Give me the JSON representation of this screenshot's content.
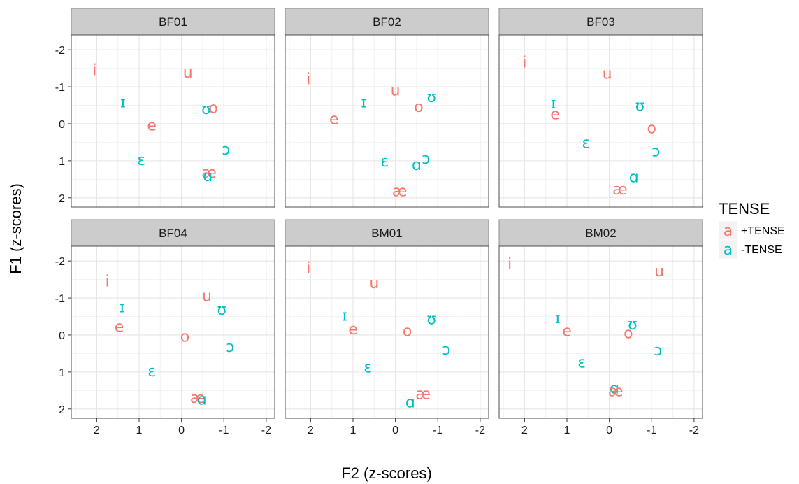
{
  "chart_data": {
    "type": "scatter",
    "xlabel": "F2 (z-scores)",
    "ylabel": "F1 (z-scores)",
    "xlim": [
      2.6,
      -2.2
    ],
    "ylim": [
      -2.4,
      2.25
    ],
    "x_ticks": [
      2,
      1,
      0,
      -1,
      -2
    ],
    "y_ticks": [
      -2,
      -1,
      0,
      1,
      2
    ],
    "grid": true,
    "legend": {
      "title": "TENSE",
      "placement": "right",
      "key_glyph": "a",
      "entries": [
        {
          "label": "+TENSE",
          "color": "#F8766D"
        },
        {
          "label": "-TENSE",
          "color": "#00BFC4"
        }
      ]
    },
    "panels": [
      {
        "title": "BF01",
        "points": [
          {
            "v": "i",
            "x": 2.05,
            "y": -1.45,
            "t": "+"
          },
          {
            "v": "u",
            "x": -0.15,
            "y": -1.38,
            "t": "+"
          },
          {
            "v": "ɪ",
            "x": 1.38,
            "y": -0.58,
            "t": "-"
          },
          {
            "v": "ʊ",
            "x": -0.58,
            "y": -0.4,
            "t": "-"
          },
          {
            "v": "o",
            "x": -0.75,
            "y": -0.42,
            "t": "+"
          },
          {
            "v": "e",
            "x": 0.7,
            "y": 0.05,
            "t": "+"
          },
          {
            "v": "ɔ",
            "x": -1.05,
            "y": 0.7,
            "t": "-"
          },
          {
            "v": "ɛ",
            "x": 0.95,
            "y": 0.98,
            "t": "-"
          },
          {
            "v": "æ",
            "x": -0.65,
            "y": 1.32,
            "t": "+"
          },
          {
            "v": "ɑ",
            "x": -0.62,
            "y": 1.42,
            "t": "-"
          }
        ]
      },
      {
        "title": "BF02",
        "points": [
          {
            "v": "i",
            "x": 2.05,
            "y": -1.2,
            "t": "+"
          },
          {
            "v": "u",
            "x": 0.0,
            "y": -0.9,
            "t": "+"
          },
          {
            "v": "ʊ",
            "x": -0.85,
            "y": -0.72,
            "t": "-"
          },
          {
            "v": "ɪ",
            "x": 0.75,
            "y": -0.58,
            "t": "-"
          },
          {
            "v": "o",
            "x": -0.55,
            "y": -0.45,
            "t": "+"
          },
          {
            "v": "e",
            "x": 1.45,
            "y": -0.12,
            "t": "+"
          },
          {
            "v": "ɔ",
            "x": -0.72,
            "y": 0.95,
            "t": "-"
          },
          {
            "v": "ɛ",
            "x": 0.25,
            "y": 1.02,
            "t": "-"
          },
          {
            "v": "ɑ",
            "x": -0.5,
            "y": 1.12,
            "t": "-"
          },
          {
            "v": "æ",
            "x": -0.1,
            "y": 1.82,
            "t": "+"
          }
        ]
      },
      {
        "title": "BF03",
        "points": [
          {
            "v": "i",
            "x": 2.0,
            "y": -1.65,
            "t": "+"
          },
          {
            "v": "u",
            "x": 0.05,
            "y": -1.35,
            "t": "+"
          },
          {
            "v": "ɪ",
            "x": 1.32,
            "y": -0.55,
            "t": "-"
          },
          {
            "v": "ʊ",
            "x": -0.72,
            "y": -0.48,
            "t": "-"
          },
          {
            "v": "e",
            "x": 1.28,
            "y": -0.25,
            "t": "+"
          },
          {
            "v": "o",
            "x": -1.0,
            "y": 0.12,
            "t": "+"
          },
          {
            "v": "ɛ",
            "x": 0.55,
            "y": 0.52,
            "t": "-"
          },
          {
            "v": "ɔ",
            "x": -1.1,
            "y": 0.75,
            "t": "-"
          },
          {
            "v": "ɑ",
            "x": -0.58,
            "y": 1.45,
            "t": "-"
          },
          {
            "v": "æ",
            "x": -0.25,
            "y": 1.78,
            "t": "+"
          }
        ]
      },
      {
        "title": "BF04",
        "points": [
          {
            "v": "i",
            "x": 1.75,
            "y": -1.45,
            "t": "+"
          },
          {
            "v": "u",
            "x": -0.6,
            "y": -1.05,
            "t": "+"
          },
          {
            "v": "ɪ",
            "x": 1.4,
            "y": -0.75,
            "t": "-"
          },
          {
            "v": "ʊ",
            "x": -0.95,
            "y": -0.68,
            "t": "-"
          },
          {
            "v": "e",
            "x": 1.47,
            "y": -0.22,
            "t": "+"
          },
          {
            "v": "o",
            "x": -0.08,
            "y": 0.05,
            "t": "+"
          },
          {
            "v": "ɔ",
            "x": -1.15,
            "y": 0.32,
            "t": "-"
          },
          {
            "v": "ɛ",
            "x": 0.7,
            "y": 0.98,
            "t": "-"
          },
          {
            "v": "æ",
            "x": -0.38,
            "y": 1.7,
            "t": "+"
          },
          {
            "v": "ɑ",
            "x": -0.48,
            "y": 1.75,
            "t": "-"
          }
        ]
      },
      {
        "title": "BM01",
        "points": [
          {
            "v": "i",
            "x": 2.05,
            "y": -1.8,
            "t": "+"
          },
          {
            "v": "u",
            "x": 0.5,
            "y": -1.4,
            "t": "+"
          },
          {
            "v": "ɪ",
            "x": 1.2,
            "y": -0.52,
            "t": "-"
          },
          {
            "v": "ʊ",
            "x": -0.85,
            "y": -0.42,
            "t": "-"
          },
          {
            "v": "e",
            "x": 1.0,
            "y": -0.15,
            "t": "+"
          },
          {
            "v": "o",
            "x": -0.28,
            "y": -0.1,
            "t": "+"
          },
          {
            "v": "ɔ",
            "x": -1.2,
            "y": 0.4,
            "t": "-"
          },
          {
            "v": "ɛ",
            "x": 0.65,
            "y": 0.88,
            "t": "-"
          },
          {
            "v": "æ",
            "x": -0.65,
            "y": 1.6,
            "t": "+"
          },
          {
            "v": "ɑ",
            "x": -0.35,
            "y": 1.82,
            "t": "-"
          }
        ]
      },
      {
        "title": "BM02",
        "points": [
          {
            "v": "i",
            "x": 2.35,
            "y": -1.92,
            "t": "+"
          },
          {
            "v": "u",
            "x": -1.18,
            "y": -1.72,
            "t": "+"
          },
          {
            "v": "ɪ",
            "x": 1.22,
            "y": -0.45,
            "t": "-"
          },
          {
            "v": "ʊ",
            "x": -0.55,
            "y": -0.28,
            "t": "-"
          },
          {
            "v": "e",
            "x": 1.0,
            "y": -0.1,
            "t": "+"
          },
          {
            "v": "o",
            "x": -0.45,
            "y": -0.05,
            "t": "+"
          },
          {
            "v": "ɔ",
            "x": -1.15,
            "y": 0.42,
            "t": "-"
          },
          {
            "v": "ɛ",
            "x": 0.65,
            "y": 0.75,
            "t": "-"
          },
          {
            "v": "ɑ",
            "x": -0.12,
            "y": 1.45,
            "t": "-"
          },
          {
            "v": "æ",
            "x": -0.15,
            "y": 1.52,
            "t": "+"
          }
        ]
      }
    ]
  }
}
